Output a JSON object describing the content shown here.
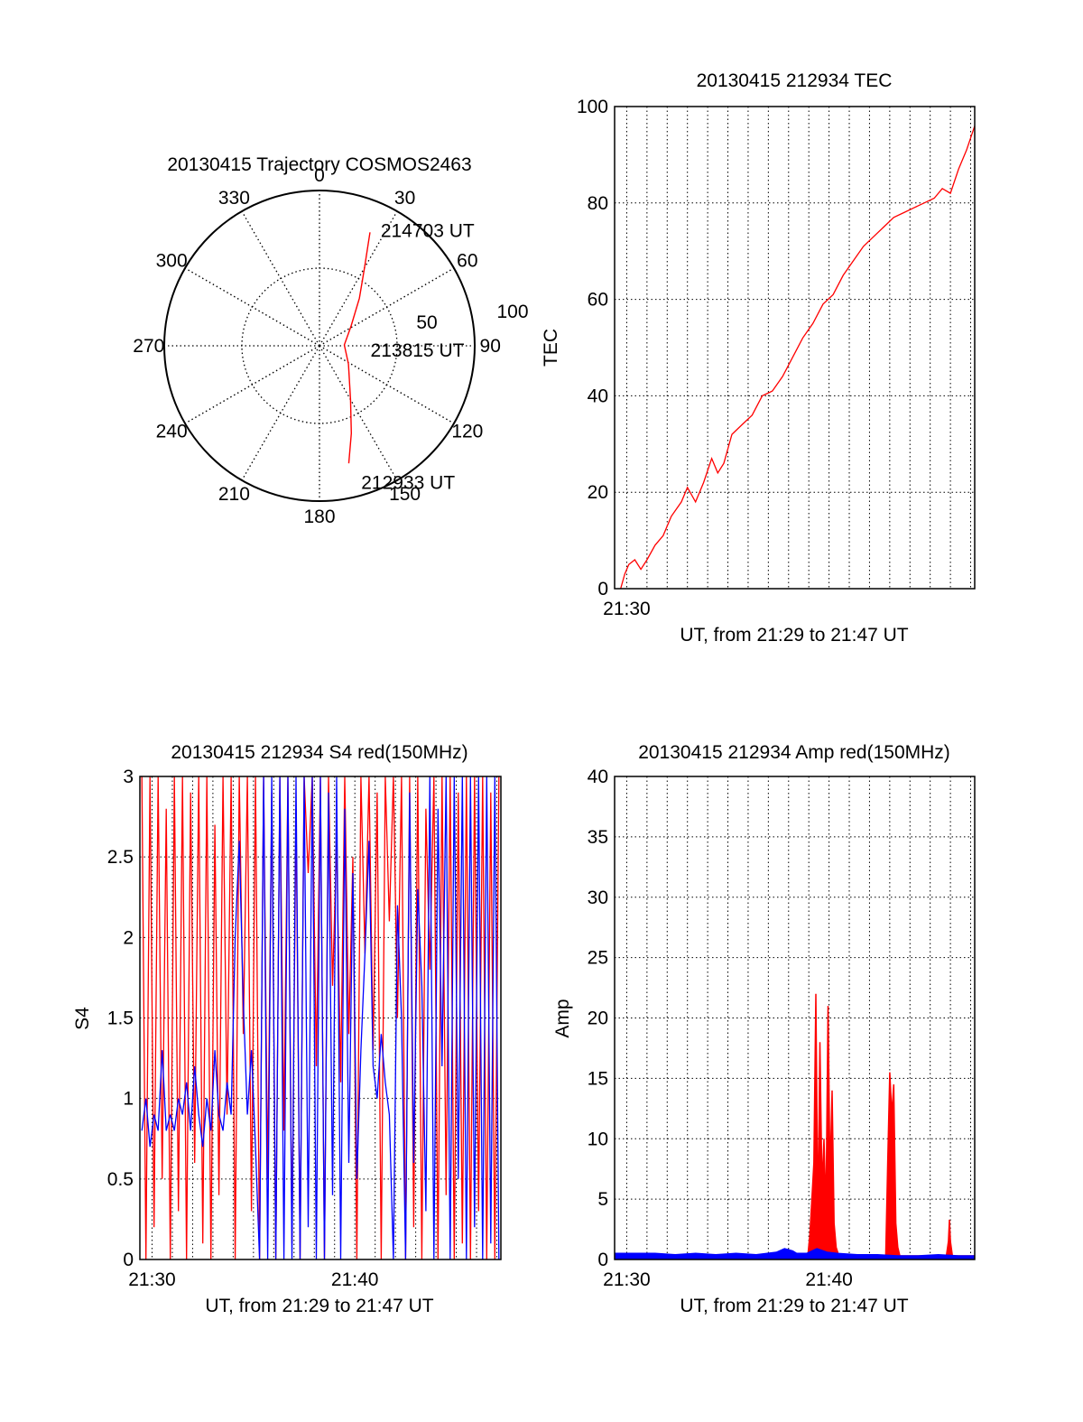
{
  "chart_data": [
    {
      "type": "polar-trajectory",
      "title": "20130415 Trajectory COSMOS2463",
      "angle_labels": [
        "0",
        "30",
        "60",
        "90",
        "120",
        "150",
        "180",
        "210",
        "240",
        "270",
        "300",
        "330"
      ],
      "radius_labels": [
        "50",
        "100"
      ],
      "rmax": 100,
      "points": [
        {
          "az": 166,
          "r": 78
        },
        {
          "az": 160,
          "r": 60
        },
        {
          "az": 150,
          "r": 40
        },
        {
          "az": 122,
          "r": 22
        },
        {
          "az": 88,
          "r": 16
        },
        {
          "az": 58,
          "r": 24
        },
        {
          "az": 40,
          "r": 40
        },
        {
          "az": 30,
          "r": 58
        },
        {
          "az": 24,
          "r": 80
        }
      ],
      "annotations": [
        {
          "text": "214703 UT",
          "az": 28,
          "r": 84
        },
        {
          "text": "213815 UT",
          "az": 95,
          "r": 33
        },
        {
          "text": "212933 UT",
          "az": 163,
          "r": 92
        }
      ],
      "line_color": "#ff0000"
    },
    {
      "type": "line",
      "title": "20130415 212934 TEC",
      "xlabel": "UT, from 21:29 to 21:47 UT",
      "ylabel": "TEC",
      "xlim": [
        0,
        17.8
      ],
      "ylim": [
        0,
        100
      ],
      "yticks": [
        "0",
        "20",
        "40",
        "60",
        "80",
        "100"
      ],
      "xticks": [
        {
          "x": 0.6,
          "label": "21:30"
        }
      ],
      "series": [
        {
          "color": "#ff0000",
          "x": [
            0.3,
            0.5,
            0.7,
            1.0,
            1.3,
            1.6,
            2.0,
            2.4,
            2.8,
            3.3,
            3.6,
            4.0,
            4.4,
            4.8,
            5.1,
            5.4,
            5.8,
            6.3,
            6.8,
            7.3,
            7.8,
            8.3,
            8.8,
            9.3,
            9.8,
            10.3,
            10.8,
            11.3,
            11.8,
            12.3,
            12.8,
            13.3,
            13.8,
            14.3,
            14.8,
            15.3,
            15.8,
            16.2,
            16.6,
            17.0,
            17.4,
            17.8
          ],
          "y": [
            0,
            3,
            5,
            6,
            4,
            6,
            9,
            11,
            15,
            18,
            21,
            18,
            22,
            27,
            24,
            26,
            32,
            34,
            36,
            40,
            41,
            44,
            48,
            52,
            55,
            59,
            61,
            65,
            68,
            71,
            73,
            75,
            77,
            78,
            79,
            80,
            81,
            83,
            82,
            87,
            91,
            96
          ]
        }
      ]
    },
    {
      "type": "line",
      "title": "20130415 212934 S4 red(150MHz)",
      "xlabel": "UT, from 21:29 to 21:47 UT",
      "ylabel": "S4",
      "xlim": [
        0,
        17.8
      ],
      "ylim": [
        0,
        3
      ],
      "yticks": [
        "0",
        "0.5",
        "1",
        "1.5",
        "2",
        "2.5",
        "3"
      ],
      "xticks": [
        {
          "x": 0.6,
          "label": "21:30"
        },
        {
          "x": 10.6,
          "label": "21:40"
        }
      ],
      "series": [
        {
          "color": "#ff0000",
          "x": [
            0.1,
            0.3,
            0.5,
            0.7,
            0.9,
            1.1,
            1.3,
            1.5,
            1.7,
            1.9,
            2.1,
            2.3,
            2.5,
            2.7,
            2.9,
            3.1,
            3.3,
            3.5,
            3.7,
            3.9,
            4.1,
            4.3,
            4.5,
            4.7,
            4.9,
            5.1,
            5.3,
            5.5,
            5.7,
            5.9,
            6.1,
            6.3,
            6.5,
            6.7,
            6.9,
            7.1,
            7.3,
            7.5,
            7.7,
            7.9,
            8.1,
            8.3,
            8.5,
            8.7,
            8.9,
            9.1,
            9.3,
            9.5,
            9.7,
            9.9,
            10.1,
            10.3,
            10.5,
            10.7,
            10.9,
            11.1,
            11.3,
            11.5,
            11.7,
            11.9,
            12.1,
            12.3,
            12.5,
            12.7,
            12.9,
            13.1,
            13.3,
            13.5,
            13.7,
            13.9,
            14.1,
            14.3,
            14.5,
            14.7,
            14.9,
            15.1,
            15.3,
            15.5,
            15.7,
            15.9,
            16.1,
            16.3,
            16.5,
            16.7,
            16.9,
            17.1,
            17.3,
            17.5,
            17.7
          ],
          "y": [
            3.0,
            0.0,
            3.0,
            0.2,
            3.0,
            0.5,
            2.8,
            0.0,
            3.0,
            0.3,
            3.0,
            0.0,
            2.9,
            0.6,
            3.0,
            0.1,
            3.0,
            0.0,
            2.7,
            0.4,
            3.0,
            0.9,
            3.0,
            0.0,
            3.0,
            1.4,
            3.0,
            0.3,
            3.0,
            0.0,
            3.0,
            0.5,
            2.9,
            0.0,
            3.0,
            0.8,
            3.0,
            0.1,
            2.8,
            0.0,
            3.0,
            2.4,
            3.0,
            1.2,
            3.0,
            0.0,
            3.0,
            1.7,
            2.6,
            1.1,
            3.0,
            1.4,
            2.5,
            0.0,
            3.0,
            1.9,
            3.0,
            1.3,
            2.9,
            0.0,
            3.0,
            2.1,
            3.0,
            1.5,
            3.0,
            0.0,
            3.0,
            0.2,
            3.0,
            0.0,
            2.8,
            1.8,
            3.0,
            0.0,
            3.0,
            0.4,
            3.0,
            0.0,
            2.9,
            0.1,
            3.0,
            0.0,
            3.0,
            0.3,
            3.0,
            0.0,
            2.9,
            0.0,
            3.0
          ]
        },
        {
          "color": "#0000ff",
          "x": [
            0.1,
            0.3,
            0.5,
            0.7,
            0.9,
            1.1,
            1.3,
            1.5,
            1.7,
            1.9,
            2.1,
            2.3,
            2.5,
            2.7,
            2.9,
            3.1,
            3.3,
            3.5,
            3.7,
            3.9,
            4.1,
            4.3,
            4.5,
            4.7,
            4.9,
            5.1,
            5.3,
            5.5,
            5.7,
            5.9,
            6.1,
            6.3,
            6.5,
            6.7,
            6.9,
            7.1,
            7.3,
            7.5,
            7.7,
            7.9,
            8.1,
            8.3,
            8.5,
            8.7,
            8.9,
            9.1,
            9.3,
            9.5,
            9.7,
            9.9,
            10.1,
            10.3,
            10.5,
            10.7,
            10.9,
            11.1,
            11.3,
            11.5,
            11.7,
            11.9,
            12.1,
            12.3,
            12.5,
            12.7,
            12.9,
            13.1,
            13.3,
            13.5,
            13.7,
            13.9,
            14.1,
            14.3,
            14.5,
            14.7,
            14.9,
            15.1,
            15.3,
            15.5,
            15.7,
            15.9,
            16.1,
            16.3,
            16.5,
            16.7,
            16.9,
            17.1,
            17.3,
            17.5,
            17.7
          ],
          "y": [
            0.8,
            1.0,
            0.7,
            0.9,
            0.8,
            1.3,
            0.8,
            0.9,
            0.8,
            1.0,
            0.9,
            1.1,
            0.8,
            1.2,
            0.9,
            0.7,
            1.0,
            0.8,
            1.3,
            0.9,
            0.8,
            1.1,
            0.9,
            2.0,
            2.6,
            1.6,
            0.9,
            1.3,
            0.7,
            0.0,
            3.0,
            0.0,
            3.0,
            0.0,
            3.0,
            0.0,
            3.0,
            0.0,
            3.0,
            0.0,
            3.0,
            0.2,
            3.0,
            0.0,
            3.0,
            0.0,
            2.9,
            0.4,
            3.0,
            0.0,
            2.8,
            0.6,
            2.4,
            0.5,
            1.3,
            1.9,
            2.6,
            1.2,
            1.0,
            1.4,
            1.1,
            0.9,
            0.0,
            2.2,
            1.5,
            0.0,
            2.9,
            0.6,
            2.3,
            1.7,
            0.3,
            3.0,
            0.0,
            2.8,
            1.2,
            3.0,
            0.0,
            3.0,
            0.5,
            3.0,
            0.0,
            3.0,
            0.2,
            3.0,
            0.0,
            3.0,
            0.1,
            3.0,
            0.0
          ]
        }
      ]
    },
    {
      "type": "area",
      "title": "20130415 212934 Amp red(150MHz)",
      "xlabel": "UT, from 21:29 to 21:47 UT",
      "ylabel": "Amp",
      "xlim": [
        0,
        17.8
      ],
      "ylim": [
        0,
        40
      ],
      "yticks": [
        "0",
        "5",
        "10",
        "15",
        "20",
        "25",
        "30",
        "35",
        "40"
      ],
      "xticks": [
        {
          "x": 0.6,
          "label": "21:30"
        },
        {
          "x": 10.6,
          "label": "21:40"
        }
      ],
      "series": [
        {
          "color": "#ff0000",
          "x": [
            0.0,
            9.55,
            9.65,
            9.75,
            9.85,
            9.95,
            10.05,
            10.15,
            10.25,
            10.35,
            10.45,
            10.55,
            10.65,
            10.75,
            10.85,
            10.95,
            11.05,
            11.2,
            13.4,
            13.5,
            13.6,
            13.7,
            13.8,
            13.9,
            14.0,
            14.1,
            16.4,
            16.5,
            16.55,
            16.6,
            16.7,
            17.8
          ],
          "y": [
            0.3,
            0.3,
            2.0,
            5.0,
            8.0,
            22.0,
            3.0,
            18.0,
            6.0,
            10.0,
            4.0,
            21.0,
            7.0,
            14.0,
            3.0,
            1.0,
            0.5,
            0.3,
            0.3,
            8.0,
            15.5,
            12.0,
            14.5,
            3.0,
            1.0,
            0.3,
            0.3,
            1.5,
            3.3,
            1.5,
            0.3,
            0.3
          ]
        },
        {
          "color": "#0000ff",
          "x": [
            0.0,
            1.0,
            2.0,
            3.0,
            4.0,
            5.0,
            6.0,
            7.0,
            8.0,
            8.4,
            8.8,
            9.0,
            9.5,
            10.0,
            10.5,
            11.0,
            12.0,
            13.0,
            14.0,
            15.0,
            16.0,
            17.0,
            17.8
          ],
          "y": [
            0.5,
            0.5,
            0.5,
            0.4,
            0.5,
            0.4,
            0.5,
            0.4,
            0.6,
            0.9,
            0.7,
            0.5,
            0.5,
            0.9,
            0.6,
            0.5,
            0.4,
            0.4,
            0.3,
            0.3,
            0.4,
            0.3,
            0.3
          ]
        }
      ]
    }
  ]
}
